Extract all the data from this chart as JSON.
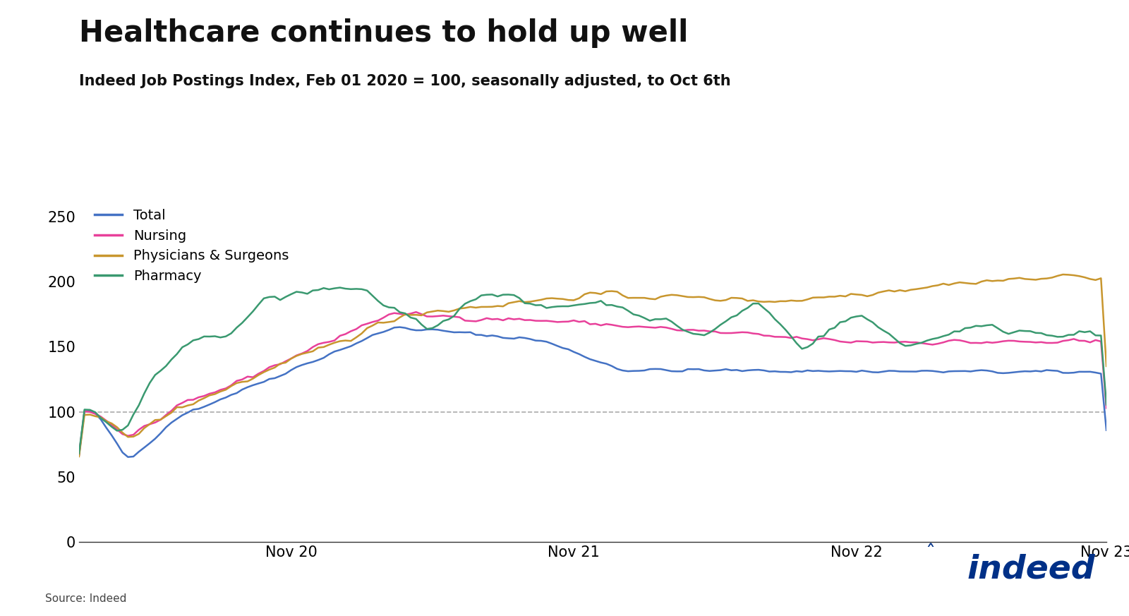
{
  "title": "Healthcare continues to hold up well",
  "subtitle": "Indeed Job Postings Index, Feb 01 2020 = 100, seasonally adjusted, to Oct 6th",
  "source": "Source: Indeed",
  "ylim": [
    0,
    260
  ],
  "yticks": [
    0,
    50,
    100,
    150,
    200,
    250
  ],
  "colors": {
    "Total": "#4472C4",
    "Nursing": "#E8409A",
    "Physicians & Surgeons": "#C8962E",
    "Pharmacy": "#3A9970"
  },
  "legend_labels": [
    "Total",
    "Nursing",
    "Physicians & Surgeons",
    "Pharmacy"
  ],
  "xtick_labels": [
    "Nov 20",
    "Nov 21",
    "Nov 22",
    "Nov 23"
  ],
  "background_color": "#ffffff",
  "title_fontsize": 30,
  "subtitle_fontsize": 15,
  "axis_fontsize": 15,
  "legend_fontsize": 14,
  "indeed_color": "#003087",
  "dashed_line_y": 100,
  "n_points": 190,
  "nov20_idx": 39,
  "nov21_idx": 91,
  "nov22_idx": 143,
  "nov23_idx": 189
}
